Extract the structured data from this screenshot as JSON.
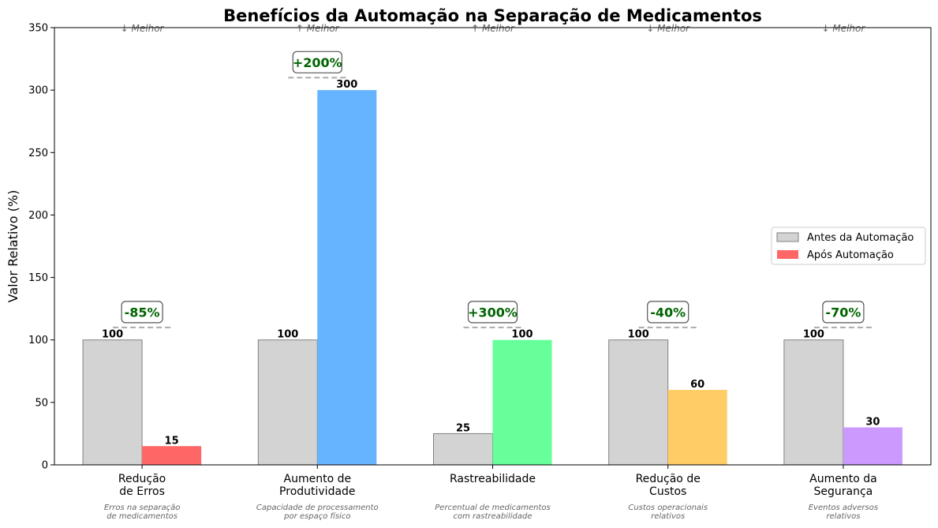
{
  "chart_data": {
    "type": "bar",
    "title": "Benefícios da Automação na Separação de Medicamentos",
    "ylabel": "Valor Relativo (%)",
    "ylim": [
      0,
      350
    ],
    "yticks": [
      0,
      50,
      100,
      150,
      200,
      250,
      300,
      350
    ],
    "grid": false,
    "legend_position": "center-right",
    "categories": [
      {
        "label_lines": [
          "Redução",
          "de Erros"
        ],
        "description_lines": [
          "Erros na separação",
          "de medicamentos"
        ],
        "direction": "↓ Melhor",
        "improvement": "-85%"
      },
      {
        "label_lines": [
          "Aumento de",
          "Produtividade"
        ],
        "description_lines": [
          "Capacidade de processamento",
          "por espaço físico"
        ],
        "direction": "↑ Melhor",
        "improvement": "+200%"
      },
      {
        "label_lines": [
          "Rastreabilidade"
        ],
        "description_lines": [
          "Percentual de medicamentos",
          "com rastreabilidade"
        ],
        "direction": "↑ Melhor",
        "improvement": "+300%"
      },
      {
        "label_lines": [
          "Redução de",
          "Custos"
        ],
        "description_lines": [
          "Custos operacionais",
          "relativos"
        ],
        "direction": "↓ Melhor",
        "improvement": "-40%"
      },
      {
        "label_lines": [
          "Aumento da",
          "Segurança"
        ],
        "description_lines": [
          "Eventos adversos",
          "relativos"
        ],
        "direction": "↓ Melhor",
        "improvement": "-70%"
      }
    ],
    "series": [
      {
        "name": "Antes da Automação",
        "values": [
          100,
          100,
          25,
          100,
          100
        ],
        "colors": [
          "#d3d3d3",
          "#d3d3d3",
          "#d3d3d3",
          "#d3d3d3",
          "#d3d3d3"
        ],
        "edge": "#808080"
      },
      {
        "name": "Após Automação",
        "values": [
          15,
          300,
          100,
          60,
          30
        ],
        "colors": [
          "#ff6666",
          "#66b3ff",
          "#66ff99",
          "#ffcc66",
          "#cc99ff"
        ]
      }
    ],
    "improvement_color": "#006400"
  }
}
